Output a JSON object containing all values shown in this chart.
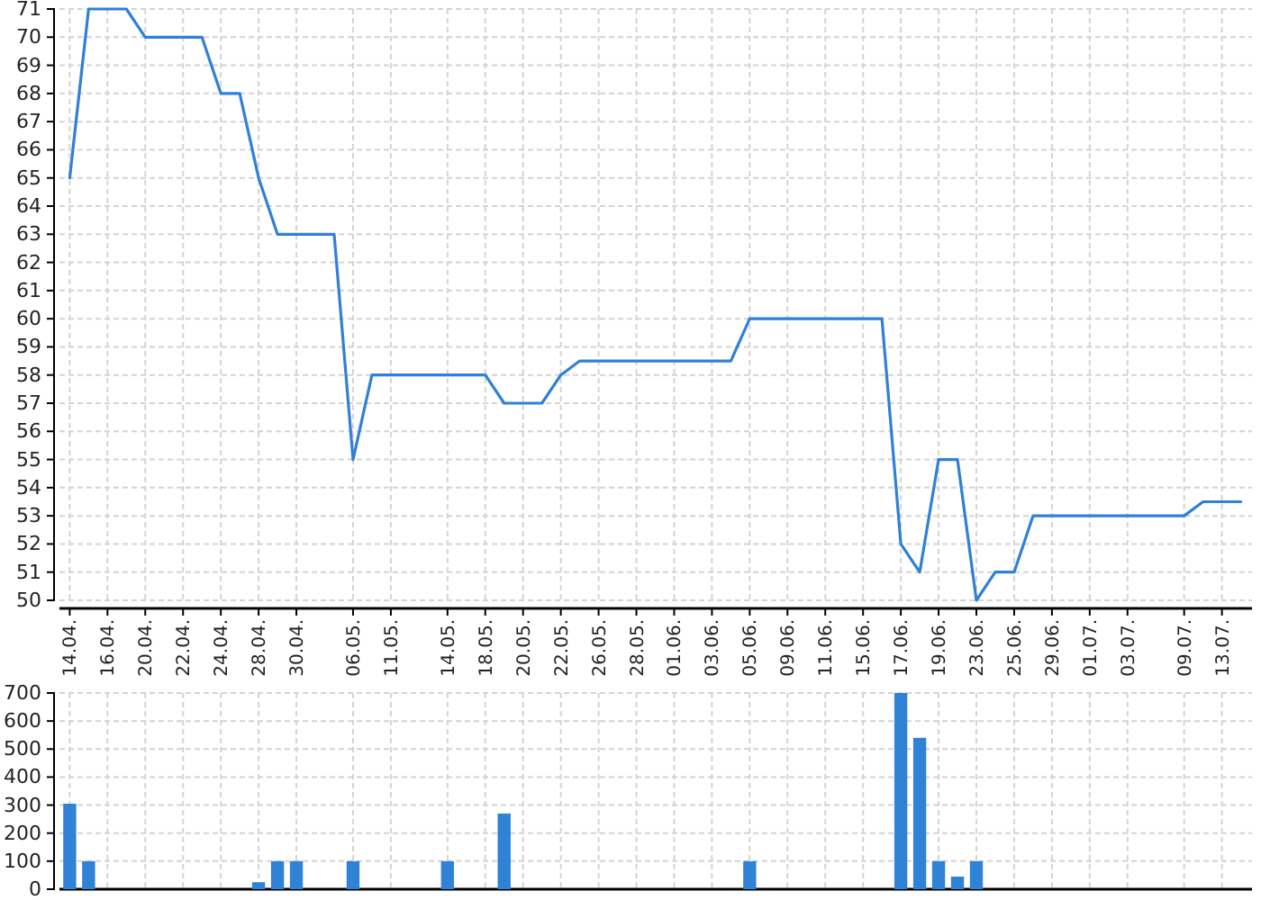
{
  "chart_data": [
    {
      "type": "line",
      "categories": [
        "14.04.",
        null,
        "16.04.",
        null,
        "20.04.",
        null,
        "22.04.",
        null,
        "24.04.",
        null,
        "28.04.",
        null,
        "30.04.",
        null,
        null,
        "06.05.",
        null,
        "11.05.",
        null,
        null,
        "14.05.",
        null,
        "18.05.",
        null,
        "20.05.",
        null,
        "22.05.",
        null,
        "26.05.",
        null,
        "28.05.",
        null,
        "01.06.",
        null,
        "03.06.",
        null,
        "05.06.",
        null,
        "09.06.",
        null,
        "11.06.",
        null,
        "15.06.",
        null,
        "17.06.",
        null,
        "19.06.",
        null,
        "23.06.",
        null,
        "25.06.",
        null,
        "29.06.",
        null,
        "01.07.",
        null,
        "03.07.",
        null,
        null,
        "09.07.",
        null,
        "13.07.",
        null
      ],
      "series": [
        {
          "color": "#2f80d8",
          "values": [
            65,
            71,
            71,
            71,
            70,
            70,
            70,
            70,
            68,
            68,
            65,
            63,
            63,
            63,
            63,
            55,
            58,
            58,
            58,
            58,
            58,
            58,
            58,
            57,
            57,
            57,
            58,
            58.5,
            58.5,
            58.5,
            58.5,
            58.5,
            58.5,
            58.5,
            58.5,
            58.5,
            60,
            60,
            60,
            60,
            60,
            60,
            60,
            60,
            52,
            51,
            55,
            55,
            50,
            51,
            51,
            53,
            53,
            53,
            53,
            53,
            53,
            53,
            53,
            53,
            53.5,
            53.5,
            53.5
          ]
        }
      ],
      "ylim": [
        50,
        71
      ],
      "yticks": [
        50,
        51,
        52,
        53,
        54,
        55,
        56,
        57,
        58,
        59,
        60,
        61,
        62,
        63,
        64,
        65,
        66,
        67,
        68,
        69,
        70,
        71
      ],
      "grid": true
    },
    {
      "type": "bar",
      "categories": [
        "14.04.",
        null,
        "16.04.",
        null,
        "20.04.",
        null,
        "22.04.",
        null,
        "24.04.",
        null,
        "28.04.",
        null,
        "30.04.",
        null,
        null,
        "06.05.",
        null,
        "11.05.",
        null,
        null,
        "14.05.",
        null,
        "18.05.",
        null,
        "20.05.",
        null,
        "22.05.",
        null,
        "26.05.",
        null,
        "28.05.",
        null,
        "01.06.",
        null,
        "03.06.",
        null,
        "05.06.",
        null,
        "09.06.",
        null,
        "11.06.",
        null,
        "15.06.",
        null,
        "17.06.",
        null,
        "19.06.",
        null,
        "23.06.",
        null,
        "25.06.",
        null,
        "29.06.",
        null,
        "01.07.",
        null,
        "03.07.",
        null,
        null,
        "09.07.",
        null,
        "13.07.",
        null
      ],
      "values": [
        305,
        100,
        null,
        null,
        null,
        null,
        null,
        null,
        null,
        null,
        25,
        100,
        100,
        null,
        null,
        100,
        null,
        null,
        null,
        null,
        100,
        null,
        null,
        270,
        null,
        null,
        null,
        null,
        null,
        null,
        null,
        null,
        null,
        null,
        null,
        null,
        100,
        null,
        null,
        null,
        null,
        null,
        null,
        null,
        700,
        540,
        100,
        45,
        100,
        null,
        null,
        null,
        null,
        null,
        null,
        null,
        null,
        null,
        null,
        null,
        null,
        null,
        null
      ],
      "color": "#2f82d6",
      "ylim": [
        0,
        700
      ],
      "yticks": [
        0,
        100,
        200,
        300,
        400,
        500,
        600,
        700
      ],
      "grid": true,
      "tick_labels": "y"
    }
  ]
}
